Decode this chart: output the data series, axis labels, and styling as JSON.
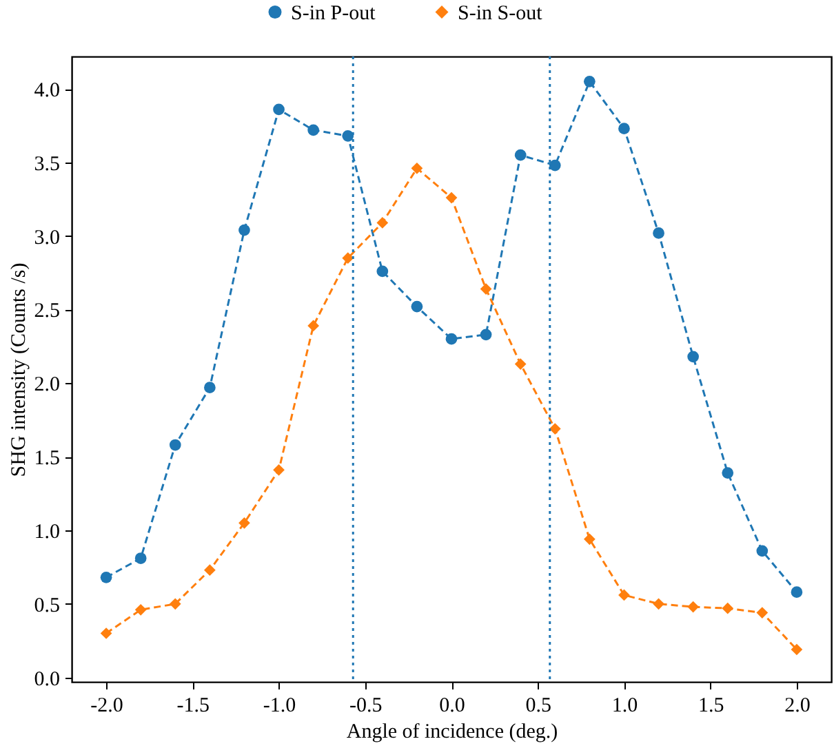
{
  "chart_data": {
    "type": "line",
    "xlabel": "Angle of incidence (deg.)",
    "ylabel": "SHG intensity (Counts /s)",
    "x": [
      -2.0,
      -1.8,
      -1.6,
      -1.4,
      -1.2,
      -1.0,
      -0.8,
      -0.6,
      -0.4,
      -0.2,
      0.0,
      0.2,
      0.4,
      0.6,
      0.8,
      1.0,
      1.2,
      1.4,
      1.6,
      1.8,
      2.0
    ],
    "series": [
      {
        "name": "S-in P-out",
        "color": "#1f77b4",
        "marker": "circle",
        "line_style": "dashed",
        "values": [
          0.68,
          0.81,
          1.58,
          1.97,
          3.04,
          3.86,
          3.72,
          3.68,
          2.76,
          2.52,
          2.3,
          2.33,
          3.55,
          3.48,
          4.05,
          3.73,
          3.02,
          2.18,
          1.39,
          0.86,
          0.58
        ]
      },
      {
        "name": "S-in S-out",
        "color": "#ff7f0e",
        "marker": "diamond",
        "line_style": "dashed",
        "values": [
          0.3,
          0.46,
          0.5,
          0.73,
          1.05,
          1.41,
          2.39,
          2.85,
          3.09,
          3.46,
          3.26,
          2.64,
          2.13,
          1.69,
          0.94,
          0.56,
          0.5,
          0.48,
          0.47,
          0.44,
          0.19
        ]
      }
    ],
    "ref_lines": [
      {
        "axis": "x",
        "value": -0.57,
        "color": "#1f77b4",
        "line_style": "dotted"
      },
      {
        "axis": "x",
        "value": 0.57,
        "color": "#1f77b4",
        "line_style": "dotted"
      }
    ],
    "xlim": [
      -2.2,
      2.2
    ],
    "xticks": [
      {
        "value": -2.0,
        "label": "-2.0"
      },
      {
        "value": -1.5,
        "label": "-1.5"
      },
      {
        "value": -1.0,
        "label": "-1.0"
      },
      {
        "value": -0.5,
        "label": "-0.5"
      },
      {
        "value": 0.0,
        "label": "0.0"
      },
      {
        "value": 0.5,
        "label": "0.5"
      },
      {
        "value": 1.0,
        "label": "1.0"
      },
      {
        "value": 1.5,
        "label": "1.5"
      },
      {
        "value": 2.0,
        "label": "2.0"
      }
    ],
    "ylim": [
      -0.03,
      4.22
    ],
    "yticks": [
      {
        "value": 0.0,
        "label": "0.0"
      },
      {
        "value": 0.5,
        "label": "0.5"
      },
      {
        "value": 1.0,
        "label": "1.0"
      },
      {
        "value": 1.5,
        "label": "1.5"
      },
      {
        "value": 2.0,
        "label": "2.0"
      },
      {
        "value": 2.5,
        "label": "2.5"
      },
      {
        "value": 3.0,
        "label": "3.0"
      },
      {
        "value": 3.5,
        "label": "3.5"
      },
      {
        "value": 4.0,
        "label": "4.0"
      }
    ],
    "grid": false,
    "legend": "top"
  }
}
